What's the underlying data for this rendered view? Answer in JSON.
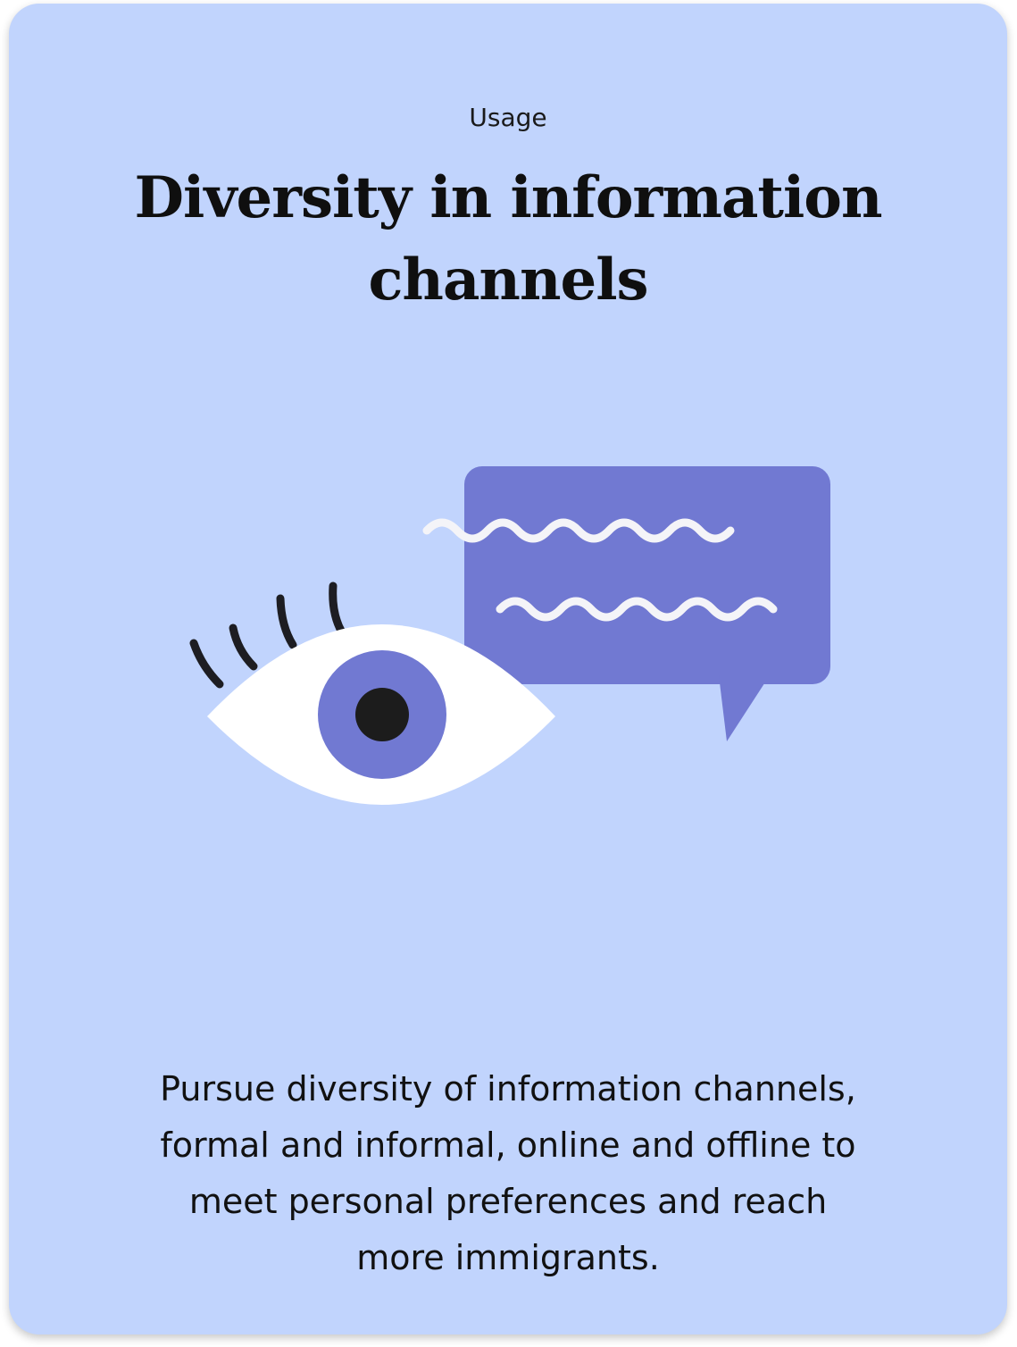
{
  "card": {
    "eyebrow": "Usage",
    "title": "Diversity in information channels",
    "description": "Pursue diversity of information channels, formal and informal, online and offline to meet personal preferences and reach more immigrants."
  },
  "illustration": {
    "icons": [
      "eye-icon",
      "speech-bubble-icon"
    ],
    "colors": {
      "background": "#c1d4fd",
      "accent": "#7179d2",
      "eye_white": "#ffffff",
      "pupil": "#1c1c1c",
      "lashes": "#1d1d22",
      "wave": "#f4f4f8"
    }
  }
}
